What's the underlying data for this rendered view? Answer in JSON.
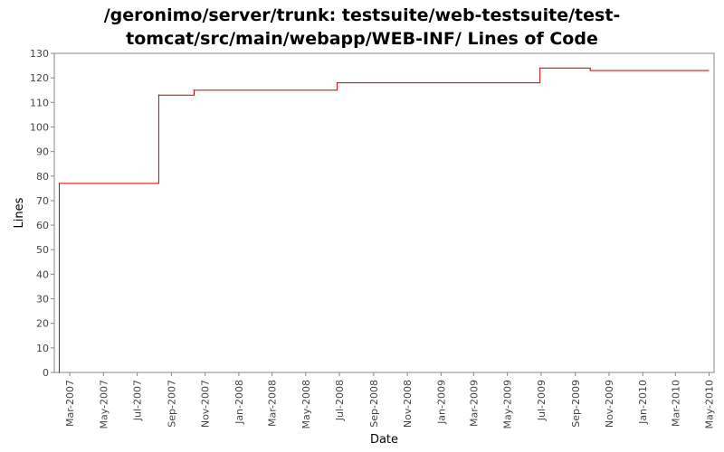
{
  "chart_data": {
    "type": "line",
    "title_lines": [
      "/geronimo/server/trunk: testsuite/web-testsuite/test-",
      "tomcat/src/main/webapp/WEB-INF/ Lines of Code"
    ],
    "xlabel": "Date",
    "ylabel": "Lines",
    "ylim": [
      0,
      130
    ],
    "yticks": [
      0,
      10,
      20,
      30,
      40,
      50,
      60,
      70,
      80,
      90,
      100,
      110,
      120,
      130
    ],
    "xlim": [
      "2007-02-01",
      "2010-05-10"
    ],
    "xticks": [
      {
        "date": "2007-03-01",
        "label": "Mar-2007"
      },
      {
        "date": "2007-05-01",
        "label": "May-2007"
      },
      {
        "date": "2007-07-01",
        "label": "Jul-2007"
      },
      {
        "date": "2007-09-01",
        "label": "Sep-2007"
      },
      {
        "date": "2007-11-01",
        "label": "Nov-2007"
      },
      {
        "date": "2008-01-01",
        "label": "Jan-2008"
      },
      {
        "date": "2008-03-01",
        "label": "Mar-2008"
      },
      {
        "date": "2008-05-01",
        "label": "May-2008"
      },
      {
        "date": "2008-07-01",
        "label": "Jul-2008"
      },
      {
        "date": "2008-09-01",
        "label": "Sep-2008"
      },
      {
        "date": "2008-11-01",
        "label": "Nov-2008"
      },
      {
        "date": "2009-01-01",
        "label": "Jan-2009"
      },
      {
        "date": "2009-03-01",
        "label": "Mar-2009"
      },
      {
        "date": "2009-05-01",
        "label": "May-2009"
      },
      {
        "date": "2009-07-01",
        "label": "Jul-2009"
      },
      {
        "date": "2009-09-01",
        "label": "Sep-2009"
      },
      {
        "date": "2009-11-01",
        "label": "Nov-2009"
      },
      {
        "date": "2010-01-01",
        "label": "Jan-2010"
      },
      {
        "date": "2010-03-01",
        "label": "Mar-2010"
      },
      {
        "date": "2010-05-01",
        "label": "May-2010"
      }
    ],
    "series": [
      {
        "color": "#cc0000",
        "step": true,
        "points": [
          {
            "x": "2007-02-10",
            "y": 0
          },
          {
            "x": "2007-02-10",
            "y": 77
          },
          {
            "x": "2007-08-09",
            "y": 113
          },
          {
            "x": "2007-10-12",
            "y": 115
          },
          {
            "x": "2008-06-27",
            "y": 118
          },
          {
            "x": "2009-06-29",
            "y": 124
          },
          {
            "x": "2009-09-28",
            "y": 123
          },
          {
            "x": "2010-04-30",
            "y": 123
          }
        ]
      }
    ],
    "grid": false
  }
}
